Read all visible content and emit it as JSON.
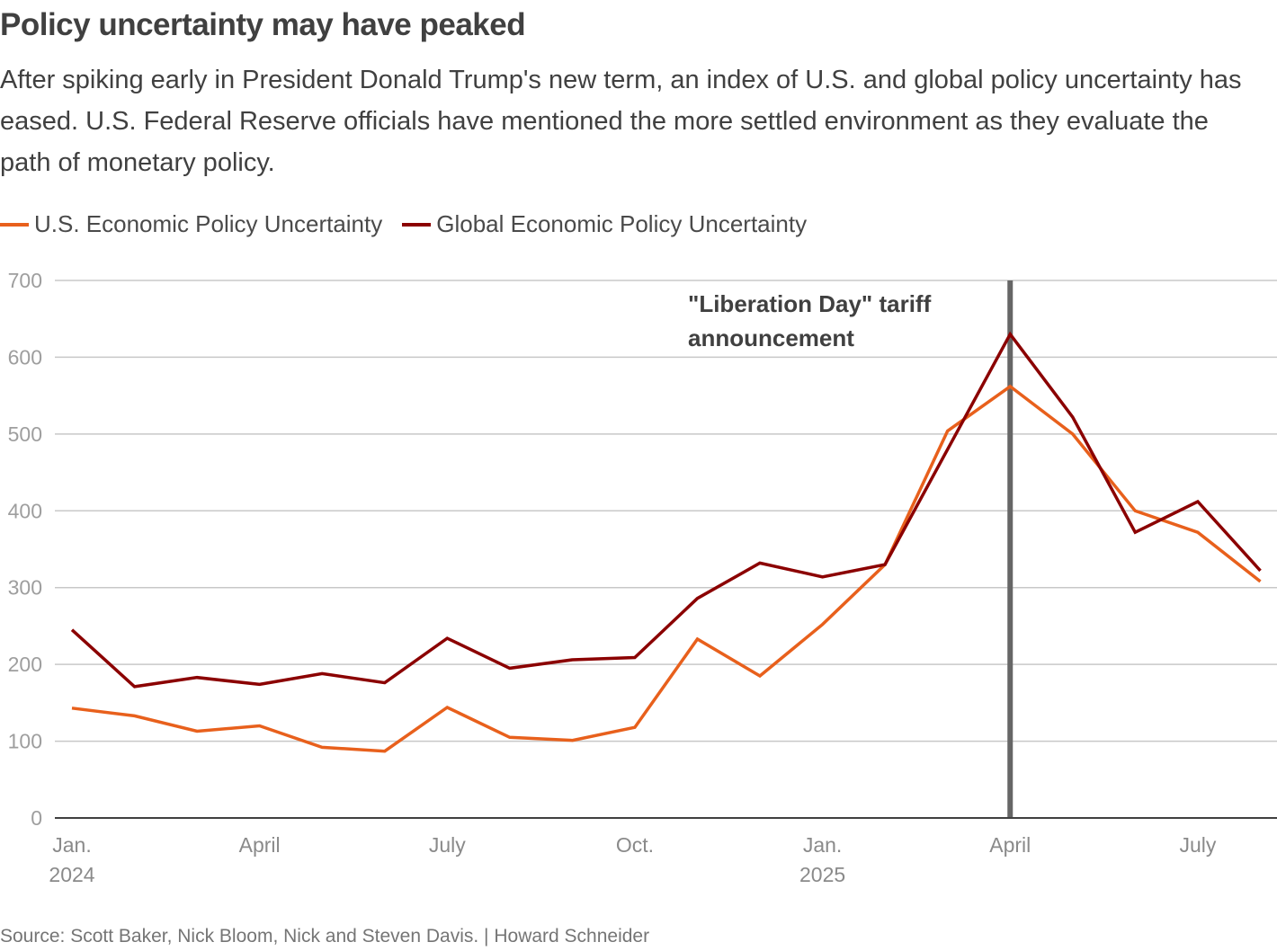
{
  "header": {
    "title": "Policy uncertainty may have peaked",
    "subtitle": "After spiking early in President Donald Trump's new term, an index of U.S. and global policy uncertainty has eased. U.S. Federal Reserve officials have mentioned the more settled environment as they evaluate the path of monetary policy."
  },
  "legend": [
    {
      "label": "U.S. Economic Policy Uncertainty",
      "color": "#e8601c"
    },
    {
      "label": "Global Economic Policy Uncertainty",
      "color": "#8b0000"
    }
  ],
  "footer": {
    "source": "Source: Scott Baker, Nick Bloom, Nick and Steven Davis. | Howard Schneider"
  },
  "chart_data": {
    "type": "line",
    "title": "Policy uncertainty may have peaked",
    "xlabel": "",
    "ylabel": "",
    "x": [
      "2024-01",
      "2024-02",
      "2024-03",
      "2024-04",
      "2024-05",
      "2024-06",
      "2024-07",
      "2024-08",
      "2024-09",
      "2024-10",
      "2024-11",
      "2024-12",
      "2025-01",
      "2025-02",
      "2025-03",
      "2025-04",
      "2025-05",
      "2025-06",
      "2025-07",
      "2025-08"
    ],
    "x_ticks": [
      {
        "index": 0,
        "label": "Jan.",
        "sublabel": "2024"
      },
      {
        "index": 3,
        "label": "April",
        "sublabel": ""
      },
      {
        "index": 6,
        "label": "July",
        "sublabel": ""
      },
      {
        "index": 9,
        "label": "Oct.",
        "sublabel": ""
      },
      {
        "index": 12,
        "label": "Jan.",
        "sublabel": "2025"
      },
      {
        "index": 15,
        "label": "April",
        "sublabel": ""
      },
      {
        "index": 18,
        "label": "July",
        "sublabel": ""
      }
    ],
    "ylim": [
      0,
      700
    ],
    "y_ticks": [
      0,
      100,
      200,
      300,
      400,
      500,
      600,
      700
    ],
    "grid": true,
    "legend_position": "top-left",
    "series": [
      {
        "name": "U.S. Economic Policy Uncertainty",
        "color": "#e8601c",
        "values": [
          143,
          133,
          113,
          120,
          92,
          87,
          144,
          105,
          101,
          118,
          233,
          185,
          252,
          330,
          504,
          562,
          500,
          400,
          372,
          308
        ]
      },
      {
        "name": "Global Economic Policy Uncertainty",
        "color": "#8b0000",
        "values": [
          245,
          171,
          183,
          174,
          188,
          176,
          234,
          195,
          206,
          209,
          286,
          332,
          314,
          330,
          480,
          630,
          522,
          372,
          412,
          322
        ]
      }
    ],
    "annotations": [
      {
        "x_index": 15,
        "lines": [
          "\"Liberation Day\" tariff",
          "announcement"
        ],
        "color": "#666666"
      }
    ]
  }
}
